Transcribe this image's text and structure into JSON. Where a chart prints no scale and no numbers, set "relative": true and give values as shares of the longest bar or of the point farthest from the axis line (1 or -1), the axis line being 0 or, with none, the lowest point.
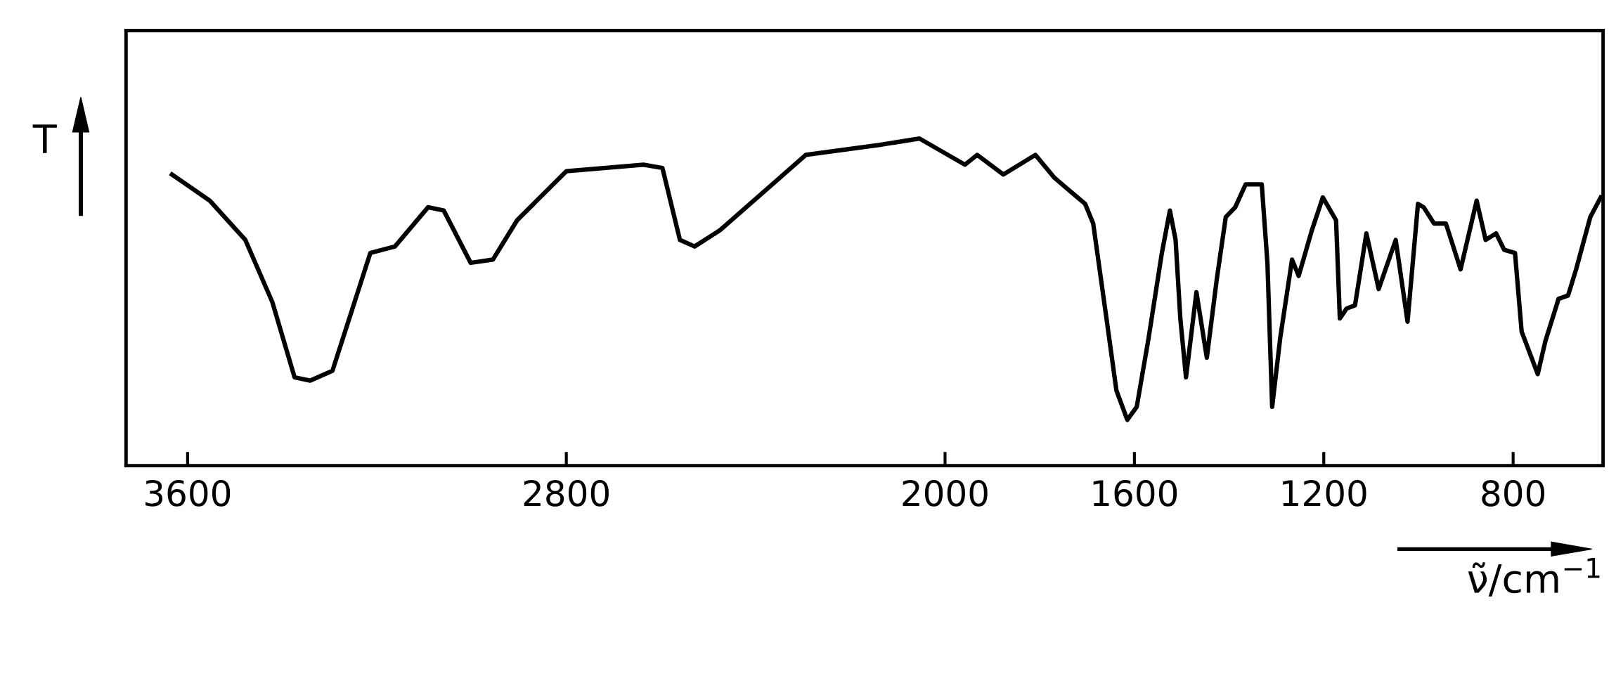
{
  "chart_data": {
    "type": "line",
    "ylabel": "T",
    "xlabel": "ν̃/cm$^{−1}$",
    "relative": true,
    "x": [
      3633,
      3553,
      3478,
      3421,
      3374,
      3341,
      3294,
      3214,
      3162,
      3092,
      3059,
      3002,
      2955,
      2904,
      2800,
      2637,
      2597,
      2560,
      2529,
      2475,
      2294,
      2140,
      2054,
      1958,
      1932,
      1877,
      1809,
      1769,
      1704,
      1687,
      1659,
      1638,
      1615,
      1595,
      1570,
      1542,
      1525,
      1513,
      1503,
      1491,
      1469,
      1447,
      1426,
      1407,
      1387,
      1365,
      1331,
      1319,
      1309,
      1292,
      1267,
      1253,
      1225,
      1202,
      1174,
      1166,
      1152,
      1134,
      1110,
      1084,
      1048,
      1023,
      1001,
      989,
      967,
      942,
      911,
      877,
      858,
      836,
      819,
      796,
      782,
      748,
      732,
      704,
      684,
      667,
      637,
      615
    ],
    "series": [
      {
        "color": "#000000",
        "values": [
          0.89,
          0.81,
          0.69,
          0.5,
          0.27,
          0.26,
          0.29,
          0.65,
          0.67,
          0.79,
          0.78,
          0.62,
          0.63,
          0.75,
          0.9,
          0.92,
          0.91,
          0.69,
          0.67,
          0.72,
          0.95,
          0.98,
          1.0,
          0.92,
          0.95,
          0.89,
          0.95,
          0.88,
          0.8,
          0.74,
          0.45,
          0.23,
          0.14,
          0.18,
          0.39,
          0.65,
          0.78,
          0.69,
          0.45,
          0.27,
          0.53,
          0.33,
          0.57,
          0.76,
          0.79,
          0.86,
          0.86,
          0.62,
          0.18,
          0.39,
          0.63,
          0.58,
          0.72,
          0.82,
          0.75,
          0.45,
          0.48,
          0.49,
          0.71,
          0.54,
          0.69,
          0.44,
          0.8,
          0.79,
          0.74,
          0.74,
          0.6,
          0.81,
          0.69,
          0.71,
          0.66,
          0.65,
          0.41,
          0.28,
          0.38,
          0.51,
          0.52,
          0.6,
          0.76,
          0.82
        ]
      }
    ],
    "xlim": [
      3730,
      610
    ],
    "xticks": [
      3600,
      2800,
      2000,
      1600,
      1200,
      800
    ],
    "grid": false,
    "marker": "none",
    "line_style": "solid"
  }
}
